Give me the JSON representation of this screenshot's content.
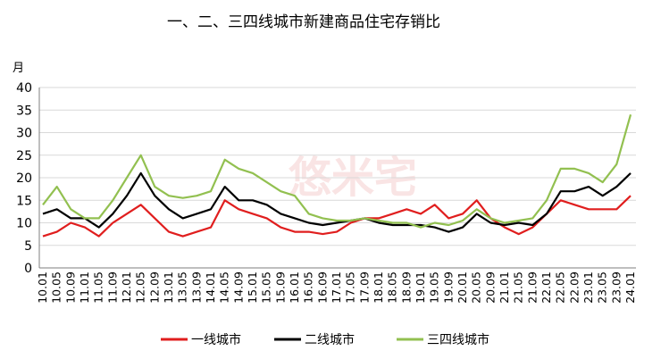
{
  "chart_data": {
    "type": "line",
    "title": "一、二、三四线城市新建商品住宅存销比",
    "ylabel": "月",
    "ylim": [
      0,
      40
    ],
    "yticks": [
      0,
      5,
      10,
      15,
      20,
      25,
      30,
      35,
      40
    ],
    "grid": true,
    "legend_position": "bottom",
    "watermark": "悠米宅",
    "x_start": "2010-01",
    "x": [
      "10.01",
      "10.05",
      "10.09",
      "11.01",
      "11.05",
      "11.09",
      "12.01",
      "12.05",
      "12.09",
      "13.01",
      "13.05",
      "13.09",
      "14.01",
      "14.05",
      "14.09",
      "15.01",
      "15.05",
      "15.09",
      "16.01",
      "16.05",
      "16.09",
      "17.01",
      "17.05",
      "17.09",
      "18.01",
      "18.05",
      "18.09",
      "19.01",
      "19.05",
      "19.09",
      "20.01",
      "20.05",
      "20.09",
      "21.01",
      "21.05",
      "21.09",
      "22.01",
      "22.05",
      "22.09",
      "23.01",
      "23.05",
      "23.09",
      "24.01"
    ],
    "series": [
      {
        "name": "一线城市",
        "color": "#e01e1e",
        "values": [
          7,
          8,
          10,
          9,
          7,
          10,
          12,
          14,
          11,
          8,
          7,
          8,
          9,
          15,
          13,
          12,
          11,
          9,
          8,
          8,
          7.5,
          8,
          10,
          11,
          11,
          12,
          13,
          12,
          14,
          11,
          12,
          15,
          11,
          9,
          7.5,
          9,
          12,
          15,
          14,
          13,
          13,
          13,
          16
        ]
      },
      {
        "name": "二线城市",
        "color": "#000000",
        "values": [
          12,
          13,
          11,
          11,
          9,
          12,
          16,
          21,
          16,
          13,
          11,
          12,
          13,
          18,
          15,
          15,
          14,
          12,
          11,
          10,
          9.5,
          10,
          10.5,
          11,
          10,
          9.5,
          9.5,
          9.5,
          9,
          8,
          9,
          12,
          10,
          9.5,
          10,
          9.5,
          12,
          17,
          17,
          18,
          16,
          18,
          21
        ]
      },
      {
        "name": "三四线城市",
        "color": "#92c050",
        "values": [
          14,
          18,
          13,
          11,
          11,
          15,
          20,
          25,
          18,
          16,
          15.5,
          16,
          17,
          24,
          22,
          21,
          19,
          17,
          16,
          12,
          11,
          10.5,
          10.5,
          11,
          10.5,
          10,
          10,
          9,
          10,
          9.5,
          10.5,
          13,
          11,
          10,
          10.5,
          11,
          15,
          22,
          22,
          21,
          19,
          23,
          34
        ]
      }
    ]
  }
}
